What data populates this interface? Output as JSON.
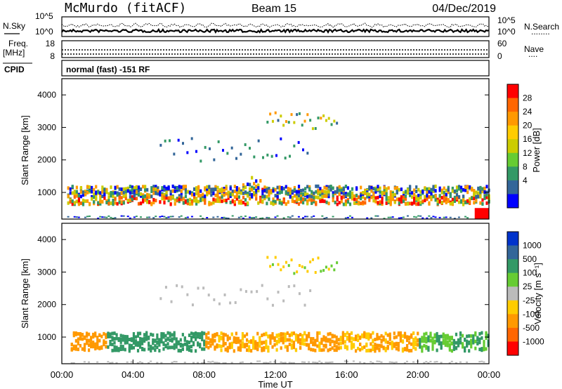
{
  "header": {
    "station": "McMurdo (fitACF)",
    "beam": "Beam 15",
    "date": "04/Dec/2019"
  },
  "noise_panel": {
    "left_label": "N.Sky",
    "right_label": "N.Search",
    "right_label_line": "........",
    "left_ticks": [
      "10^5",
      "10^0"
    ],
    "right_ticks": [
      "10^5",
      "10^0"
    ]
  },
  "freq_panel": {
    "left_label_1": "Freq.",
    "left_label_2": "[MHz]",
    "right_label": "Nave",
    "right_label_line": "....",
    "left_ticks": [
      "18",
      "8"
    ],
    "right_ticks": [
      "60",
      "0"
    ]
  },
  "cpid": {
    "label": "CPID",
    "text": "normal (fast) -151 RF"
  },
  "power_panel": {
    "ylabel": "Slant Range [km]",
    "cbar_label": "Power [dB]",
    "cbar_ticks": [
      "28",
      "24",
      "20",
      "16",
      "12",
      "8",
      "4"
    ],
    "cbar_colors": [
      "#ff0000",
      "#ff6600",
      "#ff9900",
      "#ffcc00",
      "#cccc00",
      "#66cc33",
      "#339966",
      "#336699",
      "#0000ff"
    ]
  },
  "velocity_panel": {
    "ylabel": "Slant Range [km]",
    "cbar_label": "Velocity [m s⁻¹]",
    "cbar_ticks": [
      "1000",
      "500",
      "100",
      "25",
      "-25",
      "-100",
      "-500",
      "-1000"
    ],
    "cbar_colors": [
      "#0033cc",
      "#336699",
      "#339966",
      "#66cc33",
      "#bbbbbb",
      "#ffcc00",
      "#ff9900",
      "#ff6600",
      "#ff0000"
    ]
  },
  "x_axis": {
    "label": "Time UT",
    "ticks": [
      "00:00",
      "04:00",
      "08:00",
      "12:00",
      "16:00",
      "20:00",
      "00:00"
    ]
  },
  "chart_data": [
    {
      "type": "heatmap",
      "title": "Power [dB]",
      "xlabel": "Time UT",
      "ylabel": "Slant Range [km]",
      "xlim": [
        0,
        24
      ],
      "ylim": [
        180,
        4500
      ],
      "yticks": [
        1000,
        2000,
        3000,
        4000
      ],
      "color_scale": [
        4,
        8,
        12,
        16,
        20,
        24,
        28
      ],
      "features": [
        {
          "name": "main band",
          "t": [
            0.3,
            24.0
          ],
          "range": [
            600,
            1200
          ],
          "power": [
            8,
            28
          ]
        },
        {
          "name": "near range",
          "t": [
            0.0,
            24.0
          ],
          "range": [
            180,
            300
          ],
          "power": [
            4,
            28
          ]
        },
        {
          "name": "far echoes",
          "t": [
            11.5,
            15.5
          ],
          "range": [
            2900,
            3500
          ],
          "power": [
            8,
            20
          ]
        },
        {
          "name": "mid echoes",
          "t": [
            5.5,
            14.0
          ],
          "range": [
            2000,
            2700
          ],
          "power": [
            4,
            12
          ]
        }
      ]
    },
    {
      "type": "heatmap",
      "title": "Velocity [m s-1]",
      "xlabel": "Time UT",
      "ylabel": "Slant Range [km]",
      "xlim": [
        0,
        24
      ],
      "ylim": [
        180,
        4500
      ],
      "yticks": [
        1000,
        2000,
        3000,
        4000
      ],
      "color_scale": [
        -1000,
        -500,
        -100,
        -25,
        25,
        100,
        500,
        1000
      ],
      "features": [
        {
          "name": "negative flow",
          "t": [
            0.5,
            2.5
          ],
          "range": [
            600,
            1100
          ],
          "velocity": -300
        },
        {
          "name": "positive flow",
          "t": [
            2.5,
            8.0
          ],
          "range": [
            600,
            1200
          ],
          "velocity": 150
        },
        {
          "name": "negative flow",
          "t": [
            8.0,
            20.0
          ],
          "range": [
            500,
            1100
          ],
          "velocity": -150
        },
        {
          "name": "far echoes",
          "t": [
            11.5,
            15.5
          ],
          "range": [
            2900,
            3500
          ],
          "velocity": -150
        }
      ]
    }
  ]
}
